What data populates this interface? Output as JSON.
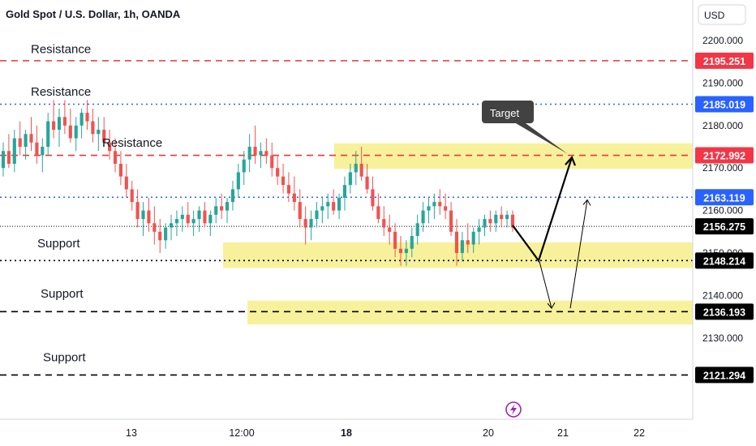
{
  "header": {
    "title": "Gold Spot / U.S. Dollar, 1h, OANDA"
  },
  "currency_button": "USD",
  "colors": {
    "up": "#26a69a",
    "down": "#ef5350",
    "resistance": "#e53935",
    "blue_level": "#2962ff",
    "zone": "#f7ef8a",
    "price_label": "#000000"
  },
  "chart_data": {
    "type": "candlestick",
    "title": "Gold Spot / U.S. Dollar, 1h, OANDA",
    "ylim": [
      2115,
      2205
    ],
    "y_ticks": [
      2130,
      2140,
      2150,
      2160,
      2170,
      2180,
      2190,
      2200
    ],
    "y_tick_labels": [
      "2130.000",
      "2140.000",
      "2150.000",
      "2160.000",
      "2170.000",
      "2180.000",
      "2190.000",
      "2200.000"
    ],
    "x_tick_labels": [
      "13",
      "12:00",
      "18",
      "20",
      "21",
      "22"
    ],
    "x_tick_bold": "18",
    "levels": [
      {
        "label": "2195.251",
        "value": 2195.251,
        "style": "dashed",
        "color": "#e53935"
      },
      {
        "label": "2185.019",
        "value": 2185.019,
        "style": "dotted",
        "color": "#2962ff"
      },
      {
        "label": "2172.992",
        "value": 2172.992,
        "style": "dashed",
        "color": "#e53935"
      },
      {
        "label": "2163.119",
        "value": 2163.119,
        "style": "dotted",
        "color": "#2962ff"
      },
      {
        "label": "2156.275",
        "value": 2156.275,
        "style": "thin-dotted",
        "color": "#000000"
      },
      {
        "label": "2148.214",
        "value": 2148.214,
        "style": "dotted",
        "color": "#000000"
      },
      {
        "label": "2136.193",
        "value": 2136.193,
        "style": "dashed",
        "color": "#000000"
      },
      {
        "label": "2121.294",
        "value": 2121.294,
        "style": "dashed",
        "color": "#000000"
      }
    ],
    "zones": [
      {
        "from": 2169.8,
        "to": 2175.8
      },
      {
        "from": 2146.5,
        "to": 2152.5
      },
      {
        "from": 2133.2,
        "to": 2138.8
      }
    ],
    "annotations": [
      {
        "text": "Resistance",
        "value": 2198.0
      },
      {
        "text": "Resistance",
        "value": 2188.0
      },
      {
        "text": "Resistance",
        "value": 2176.0
      },
      {
        "text": "Support",
        "value": 2152.3
      },
      {
        "text": "Support",
        "value": 2140.5
      },
      {
        "text": "Support",
        "value": 2125.5
      }
    ],
    "target_label": "Target",
    "projection_path": [
      2156.5,
      2148.2,
      2172.5
    ],
    "alt_path_down": [
      2148.0,
      2137.0
    ],
    "alt_path_up": [
      2137.0,
      2162.5
    ],
    "candles": [
      [
        2170,
        2176,
        2168,
        2174
      ],
      [
        2174,
        2178,
        2170,
        2171
      ],
      [
        2171,
        2179,
        2169,
        2177
      ],
      [
        2177,
        2181,
        2173,
        2175
      ],
      [
        2175,
        2179,
        2172,
        2178
      ],
      [
        2178,
        2182,
        2174,
        2176
      ],
      [
        2176,
        2180,
        2171,
        2173
      ],
      [
        2173,
        2177,
        2169,
        2175
      ],
      [
        2175,
        2183,
        2173,
        2181
      ],
      [
        2181,
        2186,
        2177,
        2179
      ],
      [
        2179,
        2184,
        2175,
        2182
      ],
      [
        2182,
        2186,
        2178,
        2180
      ],
      [
        2180,
        2184,
        2176,
        2177
      ],
      [
        2177,
        2182,
        2174,
        2180
      ],
      [
        2180,
        2184,
        2177,
        2183
      ],
      [
        2183,
        2186,
        2179,
        2181
      ],
      [
        2181,
        2184,
        2176,
        2178
      ],
      [
        2178,
        2182,
        2174,
        2179
      ],
      [
        2179,
        2182,
        2175,
        2176
      ],
      [
        2176,
        2179,
        2172,
        2174
      ],
      [
        2174,
        2177,
        2169,
        2171
      ],
      [
        2171,
        2174,
        2166,
        2168
      ],
      [
        2168,
        2171,
        2163,
        2165
      ],
      [
        2165,
        2167,
        2160,
        2162
      ],
      [
        2162,
        2165,
        2156,
        2158
      ],
      [
        2158,
        2162,
        2154,
        2160
      ],
      [
        2160,
        2163,
        2155,
        2157
      ],
      [
        2157,
        2161,
        2152,
        2155
      ],
      [
        2155,
        2158,
        2150,
        2153
      ],
      [
        2153,
        2157,
        2151,
        2156
      ],
      [
        2156,
        2159,
        2153,
        2157
      ],
      [
        2157,
        2160,
        2154,
        2158
      ],
      [
        2158,
        2161,
        2155,
        2159
      ],
      [
        2159,
        2162,
        2156,
        2157
      ],
      [
        2157,
        2160,
        2154,
        2158
      ],
      [
        2158,
        2161,
        2155,
        2160
      ],
      [
        2160,
        2162,
        2156,
        2157
      ],
      [
        2157,
        2160,
        2154,
        2159
      ],
      [
        2159,
        2163,
        2157,
        2161
      ],
      [
        2161,
        2164,
        2158,
        2160
      ],
      [
        2160,
        2163,
        2157,
        2162
      ],
      [
        2162,
        2167,
        2160,
        2165
      ],
      [
        2165,
        2171,
        2163,
        2169
      ],
      [
        2169,
        2174,
        2166,
        2172
      ],
      [
        2172,
        2178,
        2169,
        2175
      ],
      [
        2175,
        2180,
        2171,
        2173
      ],
      [
        2173,
        2176,
        2170,
        2174
      ],
      [
        2174,
        2177,
        2171,
        2173
      ],
      [
        2173,
        2176,
        2168,
        2170
      ],
      [
        2170,
        2173,
        2166,
        2168
      ],
      [
        2168,
        2171,
        2164,
        2166
      ],
      [
        2166,
        2169,
        2162,
        2164
      ],
      [
        2164,
        2168,
        2160,
        2162
      ],
      [
        2162,
        2165,
        2156,
        2158
      ],
      [
        2158,
        2161,
        2152,
        2156
      ],
      [
        2156,
        2160,
        2153,
        2158
      ],
      [
        2158,
        2162,
        2156,
        2160
      ],
      [
        2160,
        2163,
        2157,
        2161
      ],
      [
        2161,
        2164,
        2158,
        2162
      ],
      [
        2162,
        2165,
        2159,
        2160
      ],
      [
        2160,
        2164,
        2158,
        2163
      ],
      [
        2163,
        2168,
        2160,
        2166
      ],
      [
        2166,
        2171,
        2164,
        2169
      ],
      [
        2169,
        2174,
        2166,
        2171
      ],
      [
        2171,
        2175,
        2167,
        2168
      ],
      [
        2168,
        2171,
        2164,
        2165
      ],
      [
        2165,
        2168,
        2160,
        2161
      ],
      [
        2161,
        2164,
        2157,
        2158
      ],
      [
        2158,
        2161,
        2154,
        2156
      ],
      [
        2156,
        2159,
        2152,
        2155
      ],
      [
        2155,
        2157,
        2149,
        2151
      ],
      [
        2151,
        2154,
        2147,
        2150
      ],
      [
        2150,
        2153,
        2147,
        2151
      ],
      [
        2151,
        2156,
        2149,
        2154
      ],
      [
        2154,
        2159,
        2152,
        2157
      ],
      [
        2157,
        2162,
        2155,
        2160
      ],
      [
        2160,
        2163,
        2157,
        2161
      ],
      [
        2161,
        2164,
        2158,
        2162
      ],
      [
        2162,
        2165,
        2159,
        2161
      ],
      [
        2161,
        2164,
        2158,
        2160
      ],
      [
        2160,
        2162,
        2154,
        2155
      ],
      [
        2155,
        2158,
        2147,
        2150
      ],
      [
        2150,
        2155,
        2148,
        2153
      ],
      [
        2153,
        2157,
        2150,
        2152
      ],
      [
        2152,
        2156,
        2150,
        2155
      ],
      [
        2155,
        2158,
        2152,
        2156
      ],
      [
        2156,
        2159,
        2154,
        2158
      ],
      [
        2158,
        2160,
        2155,
        2157
      ],
      [
        2157,
        2160,
        2155,
        2159
      ],
      [
        2159,
        2161,
        2156,
        2158
      ],
      [
        2158,
        2160,
        2156,
        2159
      ],
      [
        2159,
        2160,
        2155,
        2156
      ]
    ]
  },
  "flash_icon": "lightning-icon"
}
